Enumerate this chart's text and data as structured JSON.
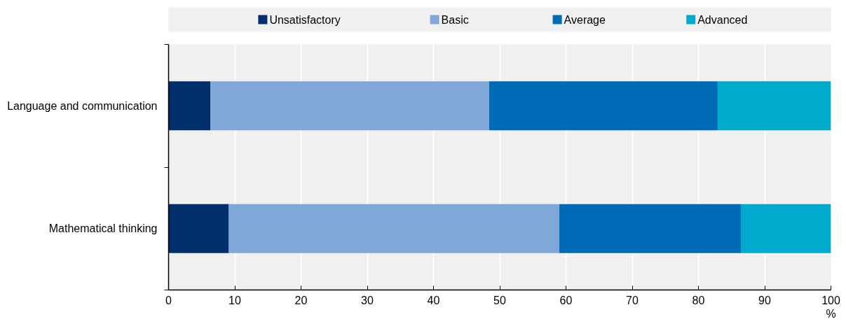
{
  "chart_data": {
    "type": "bar",
    "orientation": "horizontal",
    "stacked": true,
    "categories": [
      "Language and communication",
      "Mathematical thinking"
    ],
    "series": [
      {
        "name": "Unsatisfactory",
        "color": "#002f6c",
        "values": [
          6.3,
          9.1
        ]
      },
      {
        "name": "Basic",
        "color": "#7fa8d9",
        "values": [
          42.1,
          49.9
        ]
      },
      {
        "name": "Average",
        "color": "#006bb6",
        "values": [
          34.5,
          27.4
        ]
      },
      {
        "name": "Advanced",
        "color": "#00aacc",
        "values": [
          17.1,
          13.6
        ]
      }
    ],
    "xlim": [
      0,
      100
    ],
    "xticks": [
      0,
      10,
      20,
      30,
      40,
      50,
      60,
      70,
      80,
      90,
      100
    ],
    "xlabel": "%",
    "grid": "x",
    "legend": "top"
  }
}
